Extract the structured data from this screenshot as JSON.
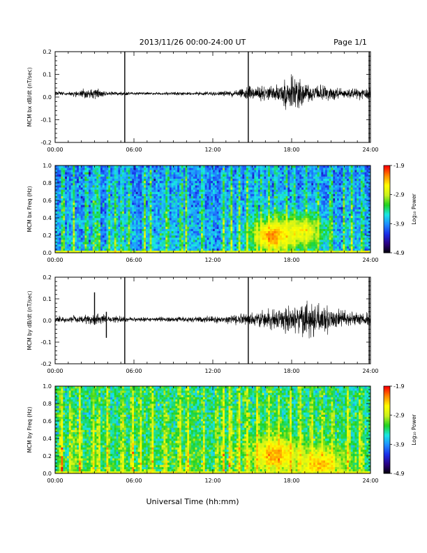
{
  "header": {
    "title": "2013/11/26  00:00-24:00 UT",
    "page_label": "Page 1/1"
  },
  "footer": {
    "xlabel": "Universal Time (hh:mm)"
  },
  "colors": {
    "trace": "#000000",
    "colormap": [
      "#000000",
      "#2a0080",
      "#1a2de8",
      "#1e8cff",
      "#19e6e6",
      "#1fd21f",
      "#c8f01e",
      "#ffff00",
      "#ff8c00",
      "#ff0000"
    ]
  },
  "chart_data": [
    {
      "type": "line",
      "name": "bx-dbdt",
      "ylabel": "MCM bx dB/dt (nT/sec)",
      "xlim": [
        0,
        24
      ],
      "ylim": [
        -0.2,
        0.2
      ],
      "x_ticks": [
        "00:00",
        "06:00",
        "12:00",
        "18:00",
        "24:00"
      ],
      "y_ticks": [
        "-0.2",
        "-0.1",
        "0.0",
        "0.1",
        "0.2"
      ],
      "y_tick_values": [
        -0.2,
        -0.1,
        0.0,
        0.1,
        0.2
      ],
      "baseline": 0.015,
      "activity": [
        [
          0,
          0.006
        ],
        [
          1,
          0.005
        ],
        [
          2,
          0.012
        ],
        [
          3,
          0.018
        ],
        [
          4,
          0.006
        ],
        [
          6,
          0.004
        ],
        [
          8,
          0.004
        ],
        [
          10,
          0.005
        ],
        [
          12,
          0.006
        ],
        [
          14,
          0.012
        ],
        [
          15,
          0.02
        ],
        [
          16,
          0.025
        ],
        [
          17,
          0.03
        ],
        [
          18,
          0.05
        ],
        [
          18.5,
          0.045
        ],
        [
          19,
          0.03
        ],
        [
          20,
          0.025
        ],
        [
          22,
          0.015
        ],
        [
          24,
          0.015
        ]
      ],
      "spikes": [
        {
          "x": 5.3,
          "min": -0.2,
          "max": 0.2
        },
        {
          "x": 14.7,
          "min": -0.2,
          "max": 0.2
        },
        {
          "x": 23.9,
          "min": -0.2,
          "max": 0.2
        }
      ]
    },
    {
      "type": "heatmap",
      "name": "bx-spectrogram",
      "ylabel": "MCM bx Freq (Hz)",
      "xlim": [
        0,
        24
      ],
      "ylim": [
        0,
        1.0
      ],
      "x_ticks": [
        "00:00",
        "06:00",
        "12:00",
        "18:00",
        "24:00"
      ],
      "y_ticks": [
        "0.0",
        "0.2",
        "0.4",
        "0.6",
        "0.8",
        "1.0"
      ],
      "y_tick_values": [
        0,
        0.2,
        0.4,
        0.6,
        0.8,
        1.0
      ],
      "colorbar": {
        "label": "Log₁₀ Power",
        "min": -4.9,
        "max": -1.9,
        "ticks": [
          "-1.9",
          "-2.9",
          "-3.9",
          "-4.9"
        ],
        "tick_values": [
          -1.9,
          -2.9,
          -3.9,
          -4.9
        ]
      },
      "background_level": -4.05,
      "stripes": [
        0.6,
        1.4,
        2.4,
        3.0,
        3.3,
        4.1,
        4.6,
        5.1,
        5.6,
        6.8,
        7.3,
        8.5,
        9.6,
        10.0,
        11.2,
        12.8,
        13.4,
        14.0,
        14.6,
        15.3,
        15.7,
        16.3,
        16.8,
        17.6,
        18.2,
        19.1,
        20.0,
        21.0,
        22.0,
        22.6,
        23.4
      ],
      "hotspots": [
        {
          "x": 16.6,
          "y": 0.2,
          "level": -2.2
        },
        {
          "x": 18.8,
          "y": 0.25,
          "level": -2.6
        }
      ]
    },
    {
      "type": "line",
      "name": "by-dbdt",
      "ylabel": "MCM by dB/dt (nT/sec)",
      "xlim": [
        0,
        24
      ],
      "ylim": [
        -0.2,
        0.2
      ],
      "x_ticks": [
        "00:00",
        "06:00",
        "12:00",
        "18:00",
        "24:00"
      ],
      "y_ticks": [
        "-0.2",
        "-0.1",
        "0.0",
        "0.1",
        "0.2"
      ],
      "y_tick_values": [
        -0.2,
        -0.1,
        0.0,
        0.1,
        0.2
      ],
      "baseline": 0.005,
      "activity": [
        [
          0,
          0.008
        ],
        [
          1,
          0.01
        ],
        [
          2,
          0.01
        ],
        [
          3,
          0.02
        ],
        [
          4,
          0.01
        ],
        [
          6,
          0.007
        ],
        [
          8,
          0.007
        ],
        [
          10,
          0.008
        ],
        [
          12,
          0.01
        ],
        [
          14,
          0.015
        ],
        [
          15,
          0.02
        ],
        [
          16,
          0.03
        ],
        [
          17,
          0.035
        ],
        [
          18,
          0.05
        ],
        [
          19,
          0.055
        ],
        [
          20,
          0.05
        ],
        [
          21,
          0.035
        ],
        [
          22,
          0.025
        ],
        [
          24,
          0.02
        ]
      ],
      "spikes": [
        {
          "x": 3.0,
          "min": -0.02,
          "max": 0.13
        },
        {
          "x": 3.9,
          "min": -0.08,
          "max": 0.04
        },
        {
          "x": 5.3,
          "min": -0.2,
          "max": 0.2
        },
        {
          "x": 14.7,
          "min": -0.2,
          "max": 0.2
        },
        {
          "x": 23.9,
          "min": -0.2,
          "max": 0.2
        }
      ]
    },
    {
      "type": "heatmap",
      "name": "by-spectrogram",
      "ylabel": "MCM by Freq (Hz)",
      "xlim": [
        0,
        24
      ],
      "ylim": [
        0,
        1.0
      ],
      "x_ticks": [
        "00:00",
        "06:00",
        "12:00",
        "18:00",
        "24:00"
      ],
      "y_ticks": [
        "0.0",
        "0.2",
        "0.4",
        "0.6",
        "0.8",
        "1.0"
      ],
      "y_tick_values": [
        0,
        0.2,
        0.4,
        0.6,
        0.8,
        1.0
      ],
      "colorbar": {
        "label": "Log₁₀ Power",
        "min": -4.9,
        "max": -1.9,
        "ticks": [
          "-1.9",
          "-2.9",
          "-3.9",
          "-4.9"
        ],
        "tick_values": [
          -1.9,
          -2.9,
          -3.9,
          -4.9
        ]
      },
      "background_level": -3.55,
      "stripes": [
        0.5,
        1.2,
        1.9,
        2.9,
        3.3,
        4.0,
        5.1,
        5.9,
        6.5,
        7.4,
        8.4,
        9.5,
        10.1,
        11.3,
        12.3,
        12.8,
        13.3,
        14.0,
        14.6,
        15.4,
        16.2,
        17.0,
        17.9,
        18.6,
        19.5,
        20.3,
        21.1,
        22.3,
        23.2
      ],
      "hotspots": [
        {
          "x": 16.8,
          "y": 0.22,
          "level": -2.3
        },
        {
          "x": 20.2,
          "y": 0.1,
          "level": -2.4
        }
      ]
    }
  ]
}
